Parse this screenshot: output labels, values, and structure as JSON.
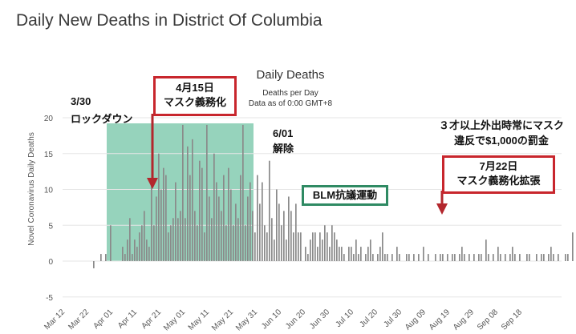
{
  "page_title": "Daily New Deaths in District Of Columbia",
  "chart_data": {
    "type": "bar",
    "title": "Daily Deaths",
    "subtitle": "Deaths per Day",
    "subtitle2": "Data as of 0:00 GMT+8",
    "ylabel": "Novel Coronavirus Daily Deaths",
    "ylim": [
      -5,
      20
    ],
    "yticks": [
      -5,
      0,
      5,
      10,
      15,
      20
    ],
    "xtick_labels": [
      "Mar 12",
      "Mar 22",
      "Apr 01",
      "Apr 11",
      "Apr 21",
      "May 01",
      "May 11",
      "May 21",
      "May 31",
      "Jun 10",
      "Jun 20",
      "Jun 30",
      "Jul 10",
      "Jul 20",
      "Jul 30",
      "Aug 09",
      "Aug 19",
      "Aug 29",
      "Sep 08",
      "Sep 18"
    ],
    "x_start": "Mar 12",
    "values": [
      0,
      0,
      0,
      0,
      0,
      0,
      0,
      0,
      0,
      0,
      0,
      0,
      0,
      -1,
      0,
      0,
      1,
      0,
      1,
      0,
      5,
      0,
      0,
      0,
      0,
      2,
      1,
      3,
      6,
      1,
      3,
      2,
      4,
      5,
      7,
      3,
      2,
      11,
      5,
      9,
      15,
      10,
      13,
      12,
      4,
      5,
      6,
      11,
      6,
      7,
      19,
      6,
      16,
      12,
      17,
      7,
      5,
      14,
      13,
      4,
      19,
      9,
      6,
      15,
      11,
      9,
      7,
      12,
      5,
      13,
      10,
      5,
      8,
      6,
      12,
      19,
      5,
      9,
      11,
      7,
      4,
      12,
      8,
      11,
      5,
      4,
      14,
      6,
      3,
      10,
      8,
      5,
      7,
      3,
      9,
      7,
      4,
      8,
      4,
      4,
      0,
      2,
      1,
      3,
      4,
      4,
      2,
      4,
      3,
      5,
      4,
      2,
      5,
      4,
      3,
      2,
      2,
      1,
      0,
      2,
      2,
      1,
      3,
      1,
      2,
      0,
      1,
      2,
      3,
      1,
      0,
      1,
      2,
      4,
      1,
      1,
      0,
      1,
      0,
      2,
      1,
      0,
      0,
      1,
      1,
      0,
      1,
      0,
      1,
      0,
      2,
      0,
      1,
      0,
      0,
      1,
      0,
      1,
      1,
      0,
      1,
      0,
      1,
      1,
      0,
      1,
      2,
      1,
      0,
      1,
      0,
      1,
      0,
      1,
      1,
      0,
      3,
      1,
      0,
      1,
      0,
      2,
      1,
      0,
      1,
      0,
      1,
      2,
      1,
      0,
      1,
      0,
      0,
      1,
      1,
      0,
      0,
      1,
      0,
      1,
      1,
      0,
      1,
      2,
      1,
      0,
      1,
      0,
      0,
      1,
      1,
      0,
      4,
      0,
      1,
      0,
      0,
      2,
      1,
      0,
      1,
      1,
      0,
      2
    ]
  },
  "annotations": {
    "lockdown": [
      "3/30",
      "ロックダウン"
    ],
    "mask_mandate": [
      "4月15日",
      "マスク義務化"
    ],
    "lift": [
      "6/01",
      "解除"
    ],
    "blm": "BLM抗議運動",
    "fine": [
      "３才以上外出時常にマスク",
      "違反で$1,000の罰金"
    ],
    "mask_expand": [
      "7月22日",
      "マスク義務化拡張"
    ]
  },
  "colors": {
    "bar": "#8a8a8a",
    "highlight": "#84cbb0",
    "arrow": "#b3272d",
    "red_border": "#c8262d",
    "green_border": "#2f8a63"
  }
}
